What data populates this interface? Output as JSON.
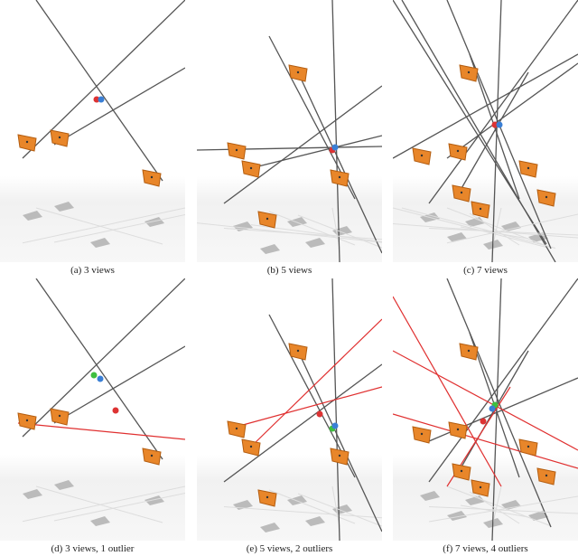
{
  "panels": [
    {
      "caption": "(a) 3 views"
    },
    {
      "caption": "(b) 5 views"
    },
    {
      "caption": "(c) 7 views"
    },
    {
      "caption": "(d) 3 views, 1 outlier"
    },
    {
      "caption": "(e) 5 views, 2 outliers"
    },
    {
      "caption": "(f) 7 views, 4 outliers"
    }
  ]
}
